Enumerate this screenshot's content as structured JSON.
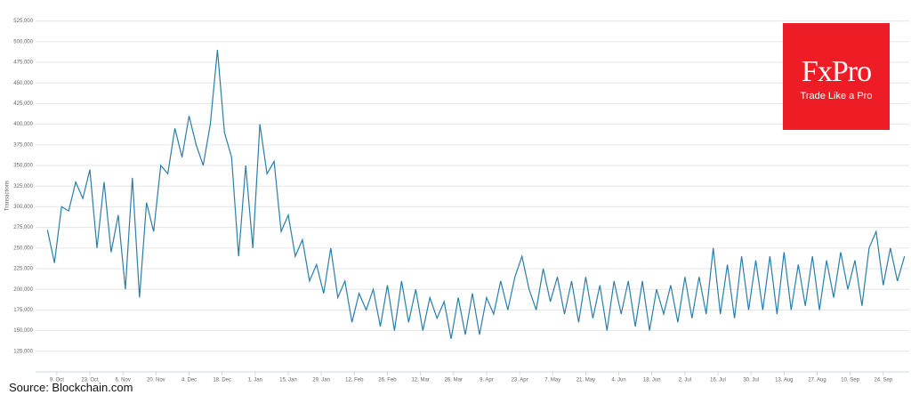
{
  "chart_data": {
    "type": "line",
    "y_label": "Transactions",
    "x": [
      -4,
      -1,
      2,
      5,
      8,
      11,
      14,
      17,
      20,
      23,
      26,
      29,
      32,
      35,
      38,
      41,
      44,
      47,
      50,
      53,
      56,
      59,
      62,
      65,
      68,
      71,
      74,
      77,
      80,
      83,
      86,
      89,
      92,
      95,
      98,
      101,
      104,
      107,
      110,
      113,
      116,
      119,
      122,
      125,
      128,
      131,
      134,
      137,
      140,
      143,
      146,
      149,
      152,
      155,
      158,
      161,
      164,
      167,
      170,
      173,
      176,
      179,
      182,
      185,
      188,
      191,
      194,
      197,
      200,
      203,
      206,
      209,
      212,
      215,
      218,
      221,
      224,
      227,
      230,
      233,
      236,
      239,
      242,
      245,
      248,
      251,
      254,
      257,
      260,
      263,
      266,
      269,
      272,
      275,
      278,
      281,
      284,
      287,
      290,
      293,
      296,
      299,
      302,
      305,
      308,
      311,
      314,
      317,
      320,
      323,
      326,
      329,
      332,
      335,
      338,
      341,
      344,
      347,
      350,
      353,
      356,
      359
    ],
    "series": [
      {
        "name": "Transactions",
        "color": "#2b7ea8",
        "values": [
          272000,
          232000,
          300000,
          295000,
          330000,
          310000,
          345000,
          250000,
          330000,
          245000,
          290000,
          200000,
          335000,
          190000,
          305000,
          270000,
          350000,
          340000,
          395000,
          360000,
          410000,
          375000,
          350000,
          400000,
          490000,
          390000,
          360000,
          240000,
          350000,
          250000,
          400000,
          340000,
          355000,
          270000,
          290000,
          240000,
          260000,
          210000,
          230000,
          195000,
          250000,
          190000,
          210000,
          160000,
          195000,
          175000,
          200000,
          155000,
          205000,
          150000,
          210000,
          160000,
          200000,
          150000,
          190000,
          165000,
          185000,
          140000,
          190000,
          145000,
          195000,
          145000,
          190000,
          170000,
          210000,
          175000,
          215000,
          240000,
          200000,
          175000,
          225000,
          185000,
          215000,
          170000,
          210000,
          160000,
          215000,
          165000,
          205000,
          150000,
          210000,
          170000,
          210000,
          155000,
          210000,
          150000,
          200000,
          170000,
          205000,
          160000,
          215000,
          165000,
          215000,
          170000,
          250000,
          170000,
          230000,
          165000,
          240000,
          175000,
          235000,
          175000,
          240000,
          170000,
          245000,
          175000,
          230000,
          180000,
          240000,
          175000,
          235000,
          190000,
          245000,
          200000,
          235000,
          180000,
          250000,
          270000,
          205000,
          250000,
          210000,
          240000
        ]
      }
    ],
    "xlim": [
      -9,
      361
    ],
    "xticks": [
      {
        "value": 0,
        "label": "9. Oct"
      },
      {
        "value": 14,
        "label": "23. Oct"
      },
      {
        "value": 28,
        "label": "6. Nov"
      },
      {
        "value": 42,
        "label": "20. Nov"
      },
      {
        "value": 56,
        "label": "4. Dec"
      },
      {
        "value": 70,
        "label": "18. Dec"
      },
      {
        "value": 84,
        "label": "1. Jan"
      },
      {
        "value": 98,
        "label": "15. Jan"
      },
      {
        "value": 112,
        "label": "29. Jan"
      },
      {
        "value": 126,
        "label": "12. Feb"
      },
      {
        "value": 140,
        "label": "26. Feb"
      },
      {
        "value": 154,
        "label": "12. Mar"
      },
      {
        "value": 168,
        "label": "26. Mar"
      },
      {
        "value": 182,
        "label": "9. Apr"
      },
      {
        "value": 196,
        "label": "23. Apr"
      },
      {
        "value": 210,
        "label": "7. May"
      },
      {
        "value": 224,
        "label": "21. May"
      },
      {
        "value": 238,
        "label": "4. Jun"
      },
      {
        "value": 252,
        "label": "18. Jun"
      },
      {
        "value": 266,
        "label": "2. Jul"
      },
      {
        "value": 280,
        "label": "16. Jul"
      },
      {
        "value": 294,
        "label": "30. Jul"
      },
      {
        "value": 308,
        "label": "13. Aug"
      },
      {
        "value": 322,
        "label": "27. Aug"
      },
      {
        "value": 336,
        "label": "10. Sep"
      },
      {
        "value": 350,
        "label": "24. Sep"
      }
    ],
    "ylim": [
      100000,
      530000
    ],
    "yticks": [
      {
        "value": 125000,
        "label": "125,000"
      },
      {
        "value": 150000,
        "label": "150,000"
      },
      {
        "value": 175000,
        "label": "175,000"
      },
      {
        "value": 200000,
        "label": "200,000"
      },
      {
        "value": 225000,
        "label": "225,000"
      },
      {
        "value": 250000,
        "label": "250,000"
      },
      {
        "value": 275000,
        "label": "275,000"
      },
      {
        "value": 300000,
        "label": "300,000"
      },
      {
        "value": 325000,
        "label": "325,000"
      },
      {
        "value": 350000,
        "label": "350,000"
      },
      {
        "value": 375000,
        "label": "375,000"
      },
      {
        "value": 400000,
        "label": "400,000"
      },
      {
        "value": 425000,
        "label": "425,000"
      },
      {
        "value": 450000,
        "label": "450,000"
      },
      {
        "value": 475000,
        "label": "475,000"
      },
      {
        "value": 500000,
        "label": "500,000"
      },
      {
        "value": 525000,
        "label": "525,000"
      }
    ],
    "grid": true
  },
  "source": "Source: Blockchain.com",
  "logo": {
    "brand": "FxPro",
    "tagline": "Trade Like a Pro"
  }
}
